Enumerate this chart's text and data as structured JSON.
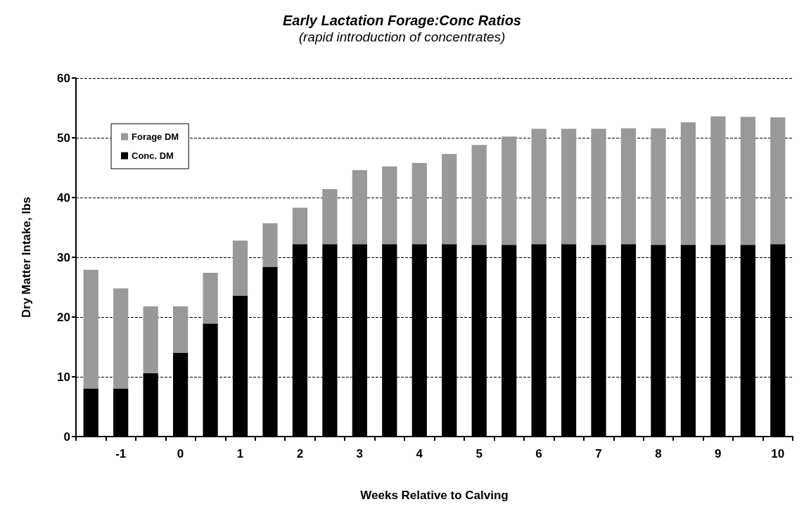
{
  "chart_data": {
    "type": "bar",
    "title": "Early Lactation Forage:Conc Ratios",
    "subtitle": "(rapid introduction of concentrates)",
    "xlabel": "Weeks Relative to Calving",
    "ylabel": "Dry Matter Intake, lbs",
    "categories": [
      null,
      "-1",
      null,
      "0",
      null,
      "1",
      null,
      "2",
      null,
      "3",
      null,
      "4",
      null,
      "5",
      null,
      "6",
      null,
      "7",
      null,
      "8",
      null,
      "9",
      null,
      "10"
    ],
    "stacked": true,
    "series": [
      {
        "name": "Conc. DM",
        "color": "#000000",
        "values": [
          8,
          8,
          10.6,
          14,
          18.9,
          23.6,
          28.4,
          32.2,
          32.2,
          32.2,
          32.2,
          32.2,
          32.2,
          32.1,
          32.1,
          32.2,
          32.2,
          32.1,
          32.2,
          32.1,
          32.1,
          32.1,
          32.1,
          32.2
        ]
      },
      {
        "name": "Forage DM",
        "color": "#999999",
        "values": [
          19.9,
          16.8,
          11.2,
          7.8,
          8.5,
          9.2,
          7.3,
          6.1,
          9.2,
          12.4,
          13.0,
          13.6,
          15.1,
          16.7,
          18.1,
          19.3,
          19.3,
          19.4,
          19.4,
          19.5,
          20.5,
          21.5,
          21.4,
          21.2
        ]
      }
    ],
    "ylim": [
      0,
      60
    ],
    "yticks": [
      0,
      10,
      20,
      30,
      40,
      50,
      60
    ],
    "grid": "y",
    "legend": "top left"
  }
}
